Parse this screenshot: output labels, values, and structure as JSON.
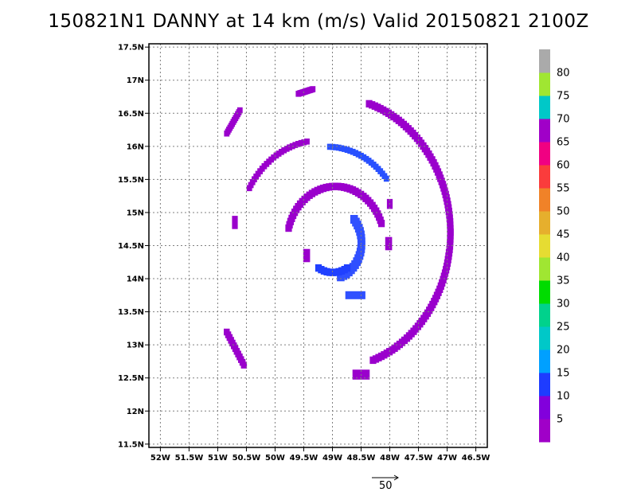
{
  "chart_data": {
    "type": "heatmap",
    "title": "150821N1 DANNY at 14 km (m/s) Valid 20150821  2100Z",
    "x_ticks": [
      "52W",
      "51.5W",
      "51W",
      "50.5W",
      "50W",
      "49.5W",
      "49W",
      "48.5W",
      "48W",
      "47.5W",
      "47W",
      "46.5W"
    ],
    "y_ticks": [
      "11.5N",
      "12N",
      "12.5N",
      "13N",
      "13.5N",
      "14N",
      "14.5N",
      "15N",
      "15.5N",
      "16N",
      "16.5N",
      "17N",
      "17.5N"
    ],
    "x_range": [
      -52.2,
      -46.3
    ],
    "y_range": [
      11.45,
      17.55
    ],
    "grid": true,
    "colorbar": {
      "levels": [
        "",
        "5",
        "10",
        "15",
        "20",
        "25",
        "30",
        "35",
        "40",
        "45",
        "50",
        "55",
        "60",
        "65",
        "70",
        "75",
        "80",
        ""
      ],
      "colors": [
        "#a000c8",
        "#8200dc",
        "#1e3cff",
        "#00a0ff",
        "#00c8c8",
        "#00d28c",
        "#00dc00",
        "#a0e632",
        "#e6dc32",
        "#e6af2d",
        "#f08228",
        "#fa3c3c",
        "#f00082",
        "#a000c8",
        "#00c8c8",
        "#a0e632",
        "#aaaaaa"
      ]
    },
    "features": [
      {
        "name": "outer-east-arc",
        "type": "arc",
        "lon0": -49.0,
        "lat0": 14.7,
        "r": 2.05,
        "a1": -70,
        "a2": 72,
        "w": 0.1,
        "color": "#9a00cc"
      },
      {
        "name": "north-arc-west",
        "type": "arc",
        "lon0": -49.2,
        "lat0": 14.65,
        "r": 1.45,
        "a1": 100,
        "a2": 150,
        "w": 0.08,
        "color": "#9a00cc"
      },
      {
        "name": "north-arc-east",
        "type": "arc",
        "lon0": -49.1,
        "lat0": 14.65,
        "r": 1.35,
        "a1": 40,
        "a2": 88,
        "w": 0.08,
        "color": "#2850ff"
      },
      {
        "name": "inner-arc",
        "type": "arc",
        "lon0": -48.95,
        "lat0": 14.55,
        "r": 0.85,
        "a1": 20,
        "a2": 165,
        "w": 0.1,
        "color": "#9a00cc"
      },
      {
        "name": "inner-core-east",
        "type": "arc",
        "lon0": -49.05,
        "lat0": 14.55,
        "r": 0.55,
        "a1": -70,
        "a2": 40,
        "w": 0.12,
        "color": "#3050ff"
      },
      {
        "name": "eyewall-south",
        "type": "arc",
        "lon0": -49.0,
        "lat0": 14.6,
        "r": 0.5,
        "a1": -120,
        "a2": -60,
        "w": 0.1,
        "color": "#2040ff"
      },
      {
        "name": "southwest-band",
        "type": "line",
        "lon1": -50.85,
        "lat1": 13.2,
        "lon2": -50.55,
        "lat2": 12.7,
        "w": 0.09,
        "color": "#9a00cc"
      },
      {
        "name": "nw-band",
        "type": "line",
        "lon1": -50.85,
        "lat1": 16.2,
        "lon2": -50.62,
        "lat2": 16.55,
        "w": 0.08,
        "color": "#9a00cc"
      },
      {
        "name": "north-blob",
        "type": "line",
        "lon1": -49.6,
        "lat1": 16.8,
        "lon2": -49.35,
        "lat2": 16.87,
        "w": 0.08,
        "color": "#9a00cc"
      },
      {
        "name": "west-blob",
        "type": "rect",
        "lon": -50.7,
        "lat": 14.85,
        "dlon": 0.1,
        "dlat": 0.2,
        "color": "#9a00cc"
      },
      {
        "name": "sw-inner-blob",
        "type": "rect",
        "lon": -49.45,
        "lat": 14.35,
        "dlon": 0.12,
        "dlat": 0.2,
        "color": "#9a00cc"
      },
      {
        "name": "east-blob-1",
        "type": "rect",
        "lon": -48.0,
        "lat": 15.13,
        "dlon": 0.1,
        "dlat": 0.15,
        "color": "#9a00cc"
      },
      {
        "name": "east-blob-2",
        "type": "rect",
        "lon": -48.02,
        "lat": 14.53,
        "dlon": 0.12,
        "dlat": 0.2,
        "color": "#9a00cc"
      },
      {
        "name": "south-blob-1",
        "type": "rect",
        "lon": -48.6,
        "lat": 13.75,
        "dlon": 0.35,
        "dlat": 0.12,
        "color": "#3050ff"
      },
      {
        "name": "south-blob-2",
        "type": "rect",
        "lon": -48.5,
        "lat": 12.55,
        "dlon": 0.3,
        "dlat": 0.15,
        "color": "#9a00cc"
      }
    ],
    "vector_scale_label": "50"
  }
}
